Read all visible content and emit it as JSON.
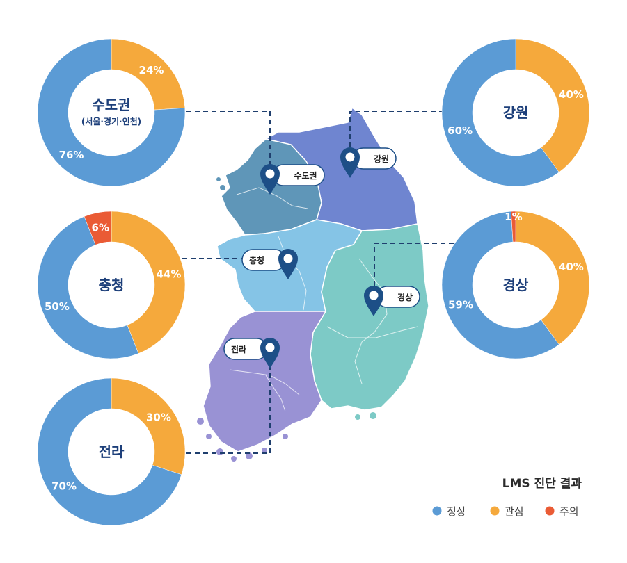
{
  "colors": {
    "normal": "#5b9bd5",
    "attention": "#f5a93c",
    "caution": "#ea5b35",
    "pin": "#1d4f87",
    "connector": "#1f3f6e",
    "region_capital": "#5f96b8",
    "region_gangwon": "#6f85d0",
    "region_chungcheong": "#85c4e6",
    "region_gyeongsang": "#7dcac6",
    "region_jeolla": "#9992d4"
  },
  "legend": {
    "title": "LMS 진단 결과",
    "items": [
      {
        "label": "정상",
        "color": "#5b9bd5"
      },
      {
        "label": "관심",
        "color": "#f5a93c"
      },
      {
        "label": "주의",
        "color": "#ea5b35"
      }
    ]
  },
  "pins": [
    {
      "label": "수도권"
    },
    {
      "label": "강원"
    },
    {
      "label": "충청"
    },
    {
      "label": "경상"
    },
    {
      "label": "전라"
    }
  ],
  "chart_data": [
    {
      "type": "pie",
      "title": "수도권",
      "subtitle": "(서울·경기·인천)",
      "slices": [
        {
          "name": "정상",
          "value": 76,
          "label": "76%"
        },
        {
          "name": "관심",
          "value": 24,
          "label": "24%"
        }
      ]
    },
    {
      "type": "pie",
      "title": "강원",
      "slices": [
        {
          "name": "정상",
          "value": 60,
          "label": "60%"
        },
        {
          "name": "관심",
          "value": 40,
          "label": "40%"
        }
      ]
    },
    {
      "type": "pie",
      "title": "충청",
      "slices": [
        {
          "name": "정상",
          "value": 50,
          "label": "50%"
        },
        {
          "name": "관심",
          "value": 44,
          "label": "44%"
        },
        {
          "name": "주의",
          "value": 6,
          "label": "6%"
        }
      ]
    },
    {
      "type": "pie",
      "title": "경상",
      "slices": [
        {
          "name": "정상",
          "value": 59,
          "label": "59%"
        },
        {
          "name": "관심",
          "value": 40,
          "label": "40%"
        },
        {
          "name": "주의",
          "value": 1,
          "label": "1%"
        }
      ]
    },
    {
      "type": "pie",
      "title": "전라",
      "slices": [
        {
          "name": "정상",
          "value": 70,
          "label": "70%"
        },
        {
          "name": "관심",
          "value": 30,
          "label": "30%"
        }
      ]
    }
  ]
}
